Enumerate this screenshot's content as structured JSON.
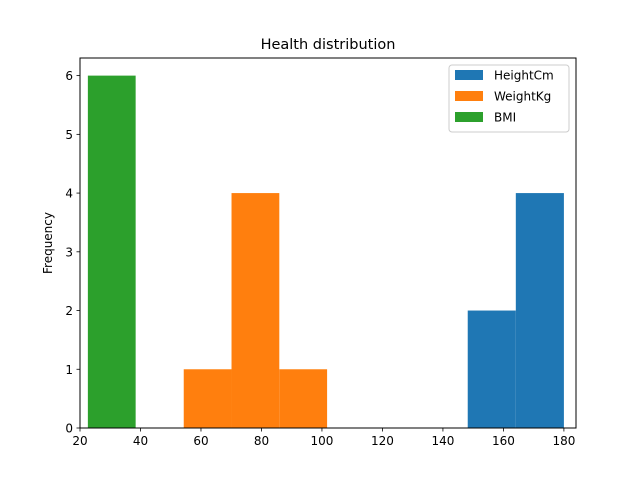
{
  "chart_data": {
    "type": "histogram",
    "title": "Health distribution",
    "xlabel": "",
    "ylabel": "Frequency",
    "xlim": [
      20,
      184
    ],
    "ylim": [
      0,
      6.3
    ],
    "xticks": [
      20,
      40,
      60,
      80,
      100,
      120,
      140,
      160,
      180
    ],
    "yticks": [
      0,
      1,
      2,
      3,
      4,
      5,
      6
    ],
    "grid": false,
    "legend": "top-right",
    "series": [
      {
        "name": "HeightCm",
        "color": "#1f77b4",
        "bins": [
          {
            "x0": 148.2,
            "x1": 164.1,
            "count": 2
          },
          {
            "x0": 164.1,
            "x1": 180.0,
            "count": 4
          }
        ]
      },
      {
        "name": "WeightKg",
        "color": "#ff7f0e",
        "bins": [
          {
            "x0": 54.3,
            "x1": 70.1,
            "count": 1
          },
          {
            "x0": 70.1,
            "x1": 85.9,
            "count": 4
          },
          {
            "x0": 85.9,
            "x1": 101.7,
            "count": 1
          }
        ]
      },
      {
        "name": "BMI",
        "color": "#2ca02c",
        "bins": [
          {
            "x0": 22.6,
            "x1": 38.4,
            "count": 6
          }
        ]
      }
    ]
  }
}
